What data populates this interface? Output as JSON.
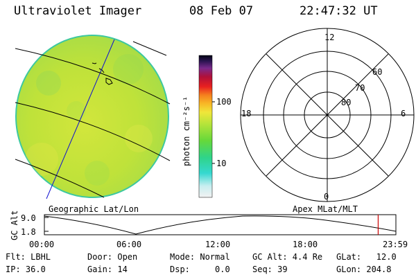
{
  "header": {
    "title": "Ultraviolet Imager",
    "date": "08 Feb 07",
    "time": "22:47:32 UT"
  },
  "panels": {
    "geo_label": "Geographic Lat/Lon",
    "apex_label": "Apex  MLat/MLT"
  },
  "colorbar": {
    "unit_label": "photon cm⁻²s⁻¹",
    "ticks": [
      "100",
      "10"
    ]
  },
  "polar": {
    "mlt_labels": [
      "12",
      "18",
      "6",
      "0"
    ],
    "lat_labels": [
      "60",
      "70",
      "80"
    ]
  },
  "timeline": {
    "ylabel": "GC Alt",
    "yticks": [
      "9.0",
      "1.8"
    ],
    "xticks": [
      "00:00",
      "06:00",
      "12:00",
      "18:00",
      "23:59"
    ],
    "marker_hours": 22.79
  },
  "status": {
    "filter": "Flt: LBHL",
    "ip": "IP: 36.0",
    "door": "Door: Open",
    "gain": "Gain: 14",
    "mode": "Mode: Normal",
    "dsp": "Dsp:     0.0",
    "gc_alt": "GC Alt: 4.4 Re",
    "seq": "Seq: 39",
    "glat": "GLat:   12.0",
    "glon": "GLon: 204.8"
  },
  "colors": {
    "grid_blue": "#1010d0",
    "marker_red": "#cc0000",
    "disk_fill": "#b9e23a",
    "disk_edge": "#3cc8a0"
  }
}
